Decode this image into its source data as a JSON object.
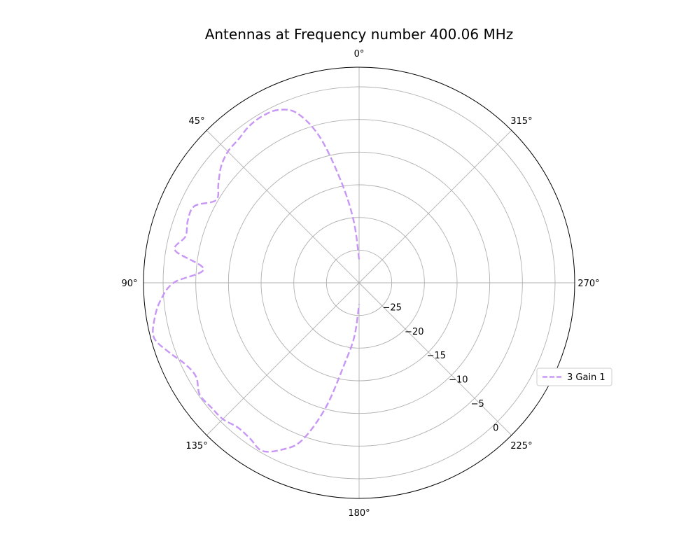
{
  "chart_data": {
    "type": "line",
    "subtype": "polar",
    "title": "Antennas at Frequency number 400.06 MHz",
    "theta_zero_location": "top",
    "theta_direction": "counterclockwise",
    "theta_unit": "deg",
    "r_range": [
      -30,
      3
    ],
    "r_ticks": [
      -25,
      -20,
      -15,
      -10,
      -5,
      0
    ],
    "r_tick_labels": [
      "−25",
      "−20",
      "−15",
      "−10",
      "−5",
      "0"
    ],
    "theta_ticks": [
      0,
      45,
      90,
      135,
      180,
      225,
      270,
      315
    ],
    "theta_tick_labels": [
      "0°",
      "45°",
      "90°",
      "135°",
      "180°",
      "225°",
      "270°",
      "315°"
    ],
    "grid": true,
    "legend_position": "right",
    "series": [
      {
        "name": "3 Gain 1",
        "color": "#c896f5",
        "style": "dashed",
        "theta": [
          0,
          5,
          10,
          15,
          20,
          25,
          30,
          35,
          40,
          45,
          50,
          55,
          60,
          65,
          70,
          75,
          80,
          85,
          90,
          95,
          100,
          105,
          110,
          115,
          120,
          125,
          130,
          135,
          140,
          145,
          150,
          155,
          160,
          165,
          170,
          175,
          180
        ],
        "r": [
          -26.4,
          -20.5,
          -14.3,
          -7.0,
          -2.4,
          -0.8,
          -0.5,
          -0.7,
          -1.3,
          -1.6,
          -2.4,
          -3.7,
          -4.7,
          -2.2,
          -2.1,
          -2.5,
          -1.4,
          -6.1,
          -1.6,
          0.5,
          1.8,
          2.5,
          1.0,
          -0.6,
          -1.2,
          -0.2,
          -0.4,
          -0.5,
          -1.1,
          -0.9,
          -0.3,
          -1.8,
          -4.3,
          -10.2,
          -17.6,
          -21.8,
          -26.7
        ]
      }
    ]
  }
}
